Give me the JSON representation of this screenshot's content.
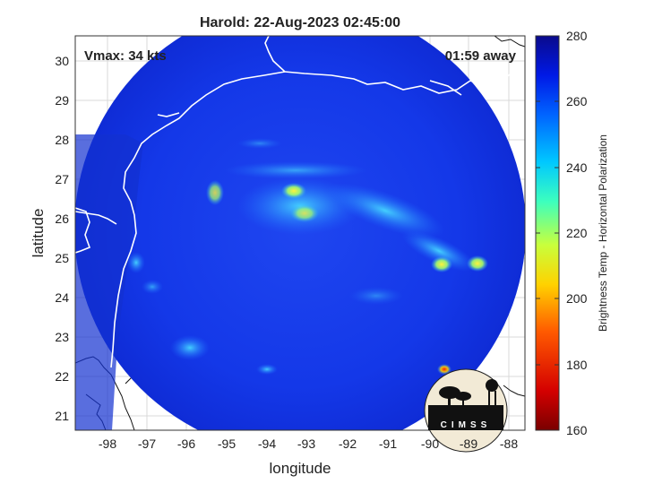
{
  "title": "Harold: 22-Aug-2023 02:45:00",
  "vmax_label": "Vmax: 34 kts",
  "time_away_label": "01:59 away",
  "x_axis_label": "longitude",
  "y_axis_label": "latitude",
  "x_ticks": [
    "-98",
    "-97",
    "-96",
    "-95",
    "-94",
    "-93",
    "-92",
    "-91",
    "-90",
    "-89",
    "-88"
  ],
  "y_ticks": [
    "30",
    "29",
    "28",
    "27",
    "26",
    "25",
    "24",
    "23",
    "22",
    "21"
  ],
  "colorbar": {
    "label": "Brightness Temp - Horizontal Polarization",
    "ticks": [
      "280",
      "260",
      "240",
      "220",
      "200",
      "180",
      "160"
    ],
    "range": [
      160,
      280
    ],
    "colors": [
      "#7a0000",
      "#d40000",
      "#ff5a00",
      "#ffd200",
      "#c8ff3c",
      "#3cffbe",
      "#00c8ff",
      "#0064ff",
      "#0019e6",
      "#0a0a8c"
    ]
  },
  "logo_text": "CIMSS",
  "map": {
    "lon_range": [
      -98.8,
      -87.7
    ],
    "lat_range": [
      20.6,
      30.6
    ],
    "swath_color": "#1436e6"
  }
}
